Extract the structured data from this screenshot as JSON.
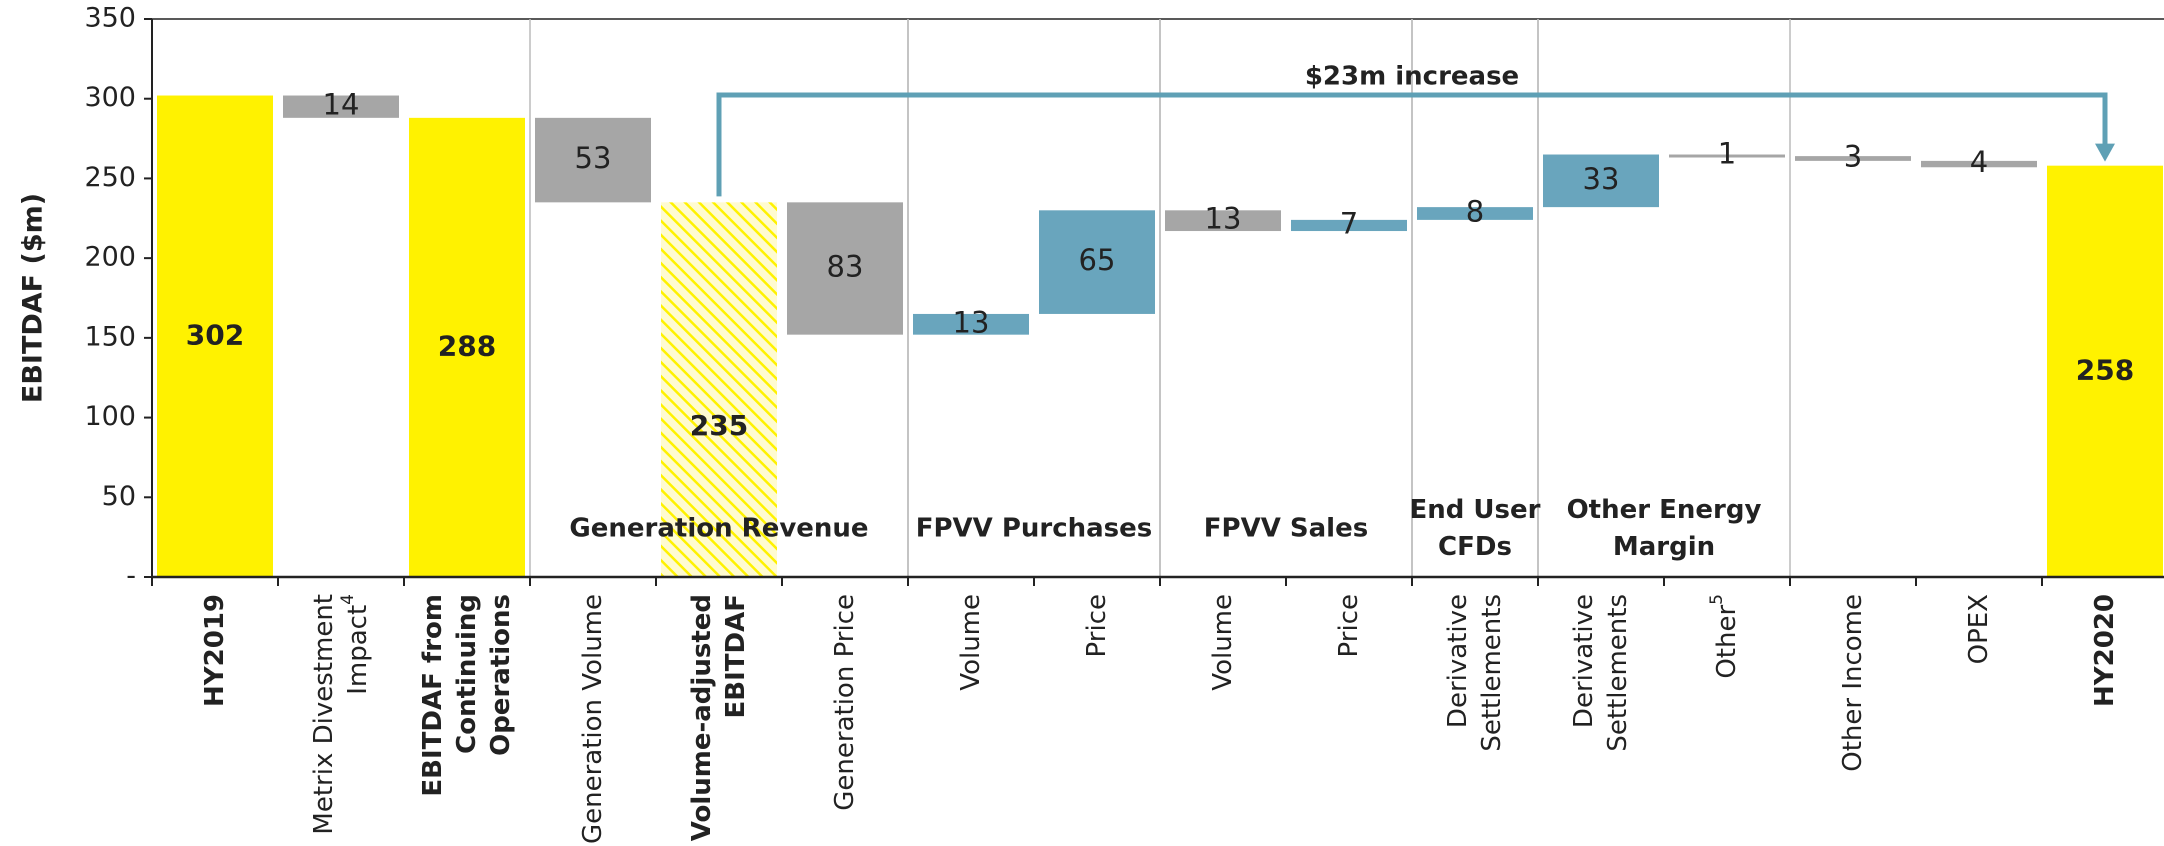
{
  "chart_data": {
    "type": "waterfall",
    "ylabel": "EBITDAF ($m)",
    "categories": [
      [
        "HY2019"
      ],
      [
        "Metrix Divestment",
        "Impact"
      ],
      [
        "EBITDAF from",
        "Continuing",
        "Operations"
      ],
      [
        "Generation Volume"
      ],
      [
        "Volume-adjusted",
        "EBITDAF"
      ],
      [
        "Generation Price"
      ],
      [
        "Volume"
      ],
      [
        "Price"
      ],
      [
        "Volume"
      ],
      [
        "Price"
      ],
      [
        "Derivative",
        "Settlements"
      ],
      [
        "Derivative",
        "Settlements"
      ],
      [
        "Other"
      ],
      [
        "Other Income"
      ],
      [
        "OPEX"
      ],
      [
        "HY2020"
      ]
    ],
    "footnotes": [
      null,
      "4",
      null,
      null,
      null,
      null,
      null,
      null,
      null,
      null,
      null,
      null,
      "5",
      null,
      null,
      null
    ],
    "kinds": [
      "total",
      "decrease",
      "total",
      "decrease",
      "adjusted",
      "decrease",
      "increase",
      "increase",
      "decrease",
      "increase",
      "increase",
      "increase",
      "decrease",
      "decrease",
      "decrease",
      "total"
    ],
    "values": [
      302,
      14,
      288,
      53,
      235,
      83,
      13,
      65,
      13,
      7,
      8,
      33,
      1,
      3,
      4,
      258
    ],
    "colors": {
      "total": "#fff200",
      "adjusted": "#fff200",
      "decrease": "#a6a6a6",
      "increase": "#69a5bd"
    },
    "groups": [
      {
        "label": [
          "Generation Revenue"
        ],
        "start": 3,
        "end": 5
      },
      {
        "label": [
          "FPVV Purchases"
        ],
        "start": 6,
        "end": 7
      },
      {
        "label": [
          "FPVV Sales"
        ],
        "start": 8,
        "end": 9
      },
      {
        "label": [
          "End User",
          "CFDs"
        ],
        "start": 10,
        "end": 10
      },
      {
        "label": [
          "Other Energy",
          "Margin"
        ],
        "start": 11,
        "end": 12
      }
    ],
    "annotation": "$23m increase",
    "ylim": [
      0,
      350
    ],
    "yticks": [
      {
        "value": 0,
        "label": "-"
      },
      50,
      100,
      150,
      200,
      250,
      300,
      350
    ]
  }
}
